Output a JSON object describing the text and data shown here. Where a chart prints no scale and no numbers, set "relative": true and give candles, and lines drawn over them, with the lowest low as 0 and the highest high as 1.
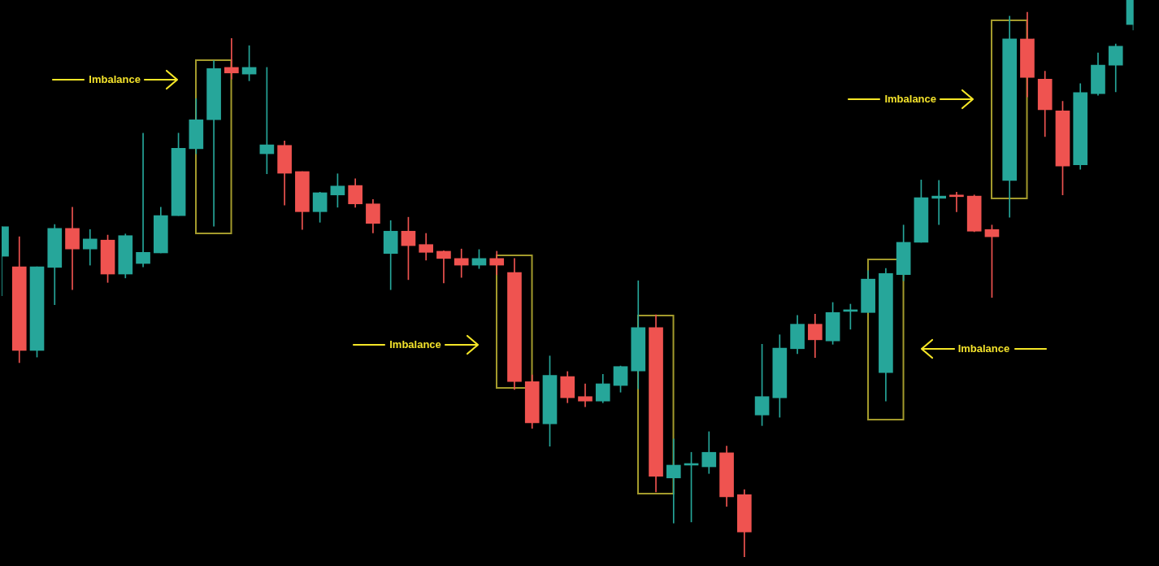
{
  "chart_data": {
    "type": "candlestick",
    "relative": true,
    "categories": [
      null,
      null,
      null,
      null,
      null,
      null,
      null,
      null,
      null,
      null,
      null,
      null,
      null,
      null,
      null,
      null,
      null,
      null,
      null,
      null,
      null,
      null,
      null,
      null,
      null,
      null,
      null,
      null,
      null,
      null,
      null,
      null,
      null,
      null,
      null,
      null,
      null,
      null,
      null,
      null,
      null,
      null,
      null,
      null,
      null,
      null,
      null,
      null,
      null,
      null,
      null,
      null,
      null,
      null,
      null,
      null,
      null,
      null,
      null,
      null,
      null,
      null,
      null,
      null,
      null
    ],
    "ohlc": [
      [
        0.54,
        0.593,
        0.469,
        0.593
      ],
      [
        0.521,
        0.575,
        0.349,
        0.371
      ],
      [
        0.371,
        0.521,
        0.359,
        0.521
      ],
      [
        0.52,
        0.597,
        0.453,
        0.59
      ],
      [
        0.59,
        0.628,
        0.48,
        0.553
      ],
      [
        0.553,
        0.588,
        0.524,
        0.571
      ],
      [
        0.569,
        0.578,
        0.493,
        0.508
      ],
      [
        0.508,
        0.58,
        0.501,
        0.577
      ],
      [
        0.527,
        0.761,
        0.521,
        0.547
      ],
      [
        0.546,
        0.628,
        0.546,
        0.613
      ],
      [
        0.613,
        0.761,
        0.613,
        0.734
      ],
      [
        0.733,
        0.823,
        0.724,
        0.785
      ],
      [
        0.785,
        0.891,
        0.594,
        0.877
      ],
      [
        0.879,
        0.931,
        0.858,
        0.869
      ],
      [
        0.867,
        0.918,
        0.855,
        0.879
      ],
      [
        0.724,
        0.879,
        0.688,
        0.74
      ],
      [
        0.739,
        0.747,
        0.632,
        0.689
      ],
      [
        0.692,
        0.692,
        0.588,
        0.62
      ],
      [
        0.62,
        0.655,
        0.601,
        0.654
      ],
      [
        0.65,
        0.688,
        0.628,
        0.666
      ],
      [
        0.667,
        0.679,
        0.628,
        0.634
      ],
      [
        0.634,
        0.642,
        0.582,
        0.599
      ],
      [
        0.545,
        0.604,
        0.48,
        0.585
      ],
      [
        0.585,
        0.61,
        0.498,
        0.559
      ],
      [
        0.561,
        0.581,
        0.533,
        0.547
      ],
      [
        0.549,
        0.55,
        0.492,
        0.536
      ],
      [
        0.536,
        0.553,
        0.502,
        0.524
      ],
      [
        0.524,
        0.552,
        0.518,
        0.536
      ],
      [
        0.536,
        0.549,
        0.507,
        0.524
      ],
      [
        0.511,
        0.536,
        0.301,
        0.315
      ],
      [
        0.315,
        0.327,
        0.231,
        0.241
      ],
      [
        0.239,
        0.361,
        0.199,
        0.326
      ],
      [
        0.324,
        0.333,
        0.277,
        0.286
      ],
      [
        0.288,
        0.311,
        0.27,
        0.28
      ],
      [
        0.28,
        0.328,
        0.277,
        0.311
      ],
      [
        0.308,
        0.343,
        0.296,
        0.342
      ],
      [
        0.334,
        0.496,
        0.302,
        0.412
      ],
      [
        0.412,
        0.435,
        0.117,
        0.145
      ],
      [
        0.142,
        0.212,
        0.061,
        0.165
      ],
      [
        0.165,
        0.188,
        0.063,
        0.165
      ],
      [
        0.162,
        0.225,
        0.15,
        0.188
      ],
      [
        0.187,
        0.199,
        0.091,
        0.108
      ],
      [
        0.112,
        0.121,
        0,
        0.045
      ],
      [
        0.255,
        0.382,
        0.236,
        0.288
      ],
      [
        0.286,
        0.399,
        0.251,
        0.375
      ],
      [
        0.374,
        0.434,
        0.365,
        0.418
      ],
      [
        0.418,
        0.436,
        0.358,
        0.39
      ],
      [
        0.388,
        0.457,
        0.382,
        0.439
      ],
      [
        0.441,
        0.454,
        0.409,
        0.441
      ],
      [
        0.439,
        0.514,
        0.439,
        0.499
      ],
      [
        0.331,
        0.518,
        0.28,
        0.509
      ],
      [
        0.507,
        0.596,
        0.496,
        0.565
      ],
      [
        0.565,
        0.677,
        0.565,
        0.645
      ],
      [
        0.644,
        0.676,
        0.597,
        0.648
      ],
      [
        0.647,
        0.655,
        0.62,
        0.647
      ],
      [
        0.648,
        0.65,
        0.584,
        0.585
      ],
      [
        0.588,
        0.596,
        0.466,
        0.575
      ],
      [
        0.676,
        0.971,
        0.61,
        0.93
      ],
      [
        0.93,
        0.978,
        0.826,
        0.861
      ],
      [
        0.858,
        0.872,
        0.755,
        0.803
      ],
      [
        0.801,
        0.818,
        0.65,
        0.702
      ],
      [
        0.704,
        0.85,
        0.696,
        0.834
      ],
      [
        0.832,
        0.905,
        0.829,
        0.883
      ],
      [
        0.883,
        0.921,
        0.835,
        0.917
      ],
      [
        0.956,
        1,
        0.946,
        1
      ]
    ],
    "colors": [
      "#26a69a",
      "#ef5350",
      "#26a69a",
      "#26a69a",
      "#ef5350",
      "#26a69a",
      "#ef5350",
      "#26a69a",
      "#26a69a",
      "#26a69a",
      "#26a69a",
      "#26a69a",
      "#26a69a",
      "#ef5350",
      "#26a69a",
      "#26a69a",
      "#ef5350",
      "#ef5350",
      "#26a69a",
      "#26a69a",
      "#ef5350",
      "#ef5350",
      "#26a69a",
      "#ef5350",
      "#ef5350",
      "#ef5350",
      "#ef5350",
      "#26a69a",
      "#ef5350",
      "#ef5350",
      "#ef5350",
      "#26a69a",
      "#ef5350",
      "#ef5350",
      "#26a69a",
      "#26a69a",
      "#26a69a",
      "#ef5350",
      "#26a69a",
      "#26a69a",
      "#26a69a",
      "#ef5350",
      "#ef5350",
      "#26a69a",
      "#26a69a",
      "#26a69a",
      "#ef5350",
      "#26a69a",
      "#26a69a",
      "#26a69a",
      "#26a69a",
      "#26a69a",
      "#26a69a",
      "#26a69a",
      "#ef5350",
      "#ef5350",
      "#ef5350",
      "#26a69a",
      "#ef5350",
      "#ef5350",
      "#ef5350",
      "#26a69a",
      "#26a69a",
      "#26a69a",
      "#26a69a"
    ],
    "annotations": [
      "Imbalance",
      "Imbalance",
      "Imbalance",
      "Imbalance"
    ]
  }
}
